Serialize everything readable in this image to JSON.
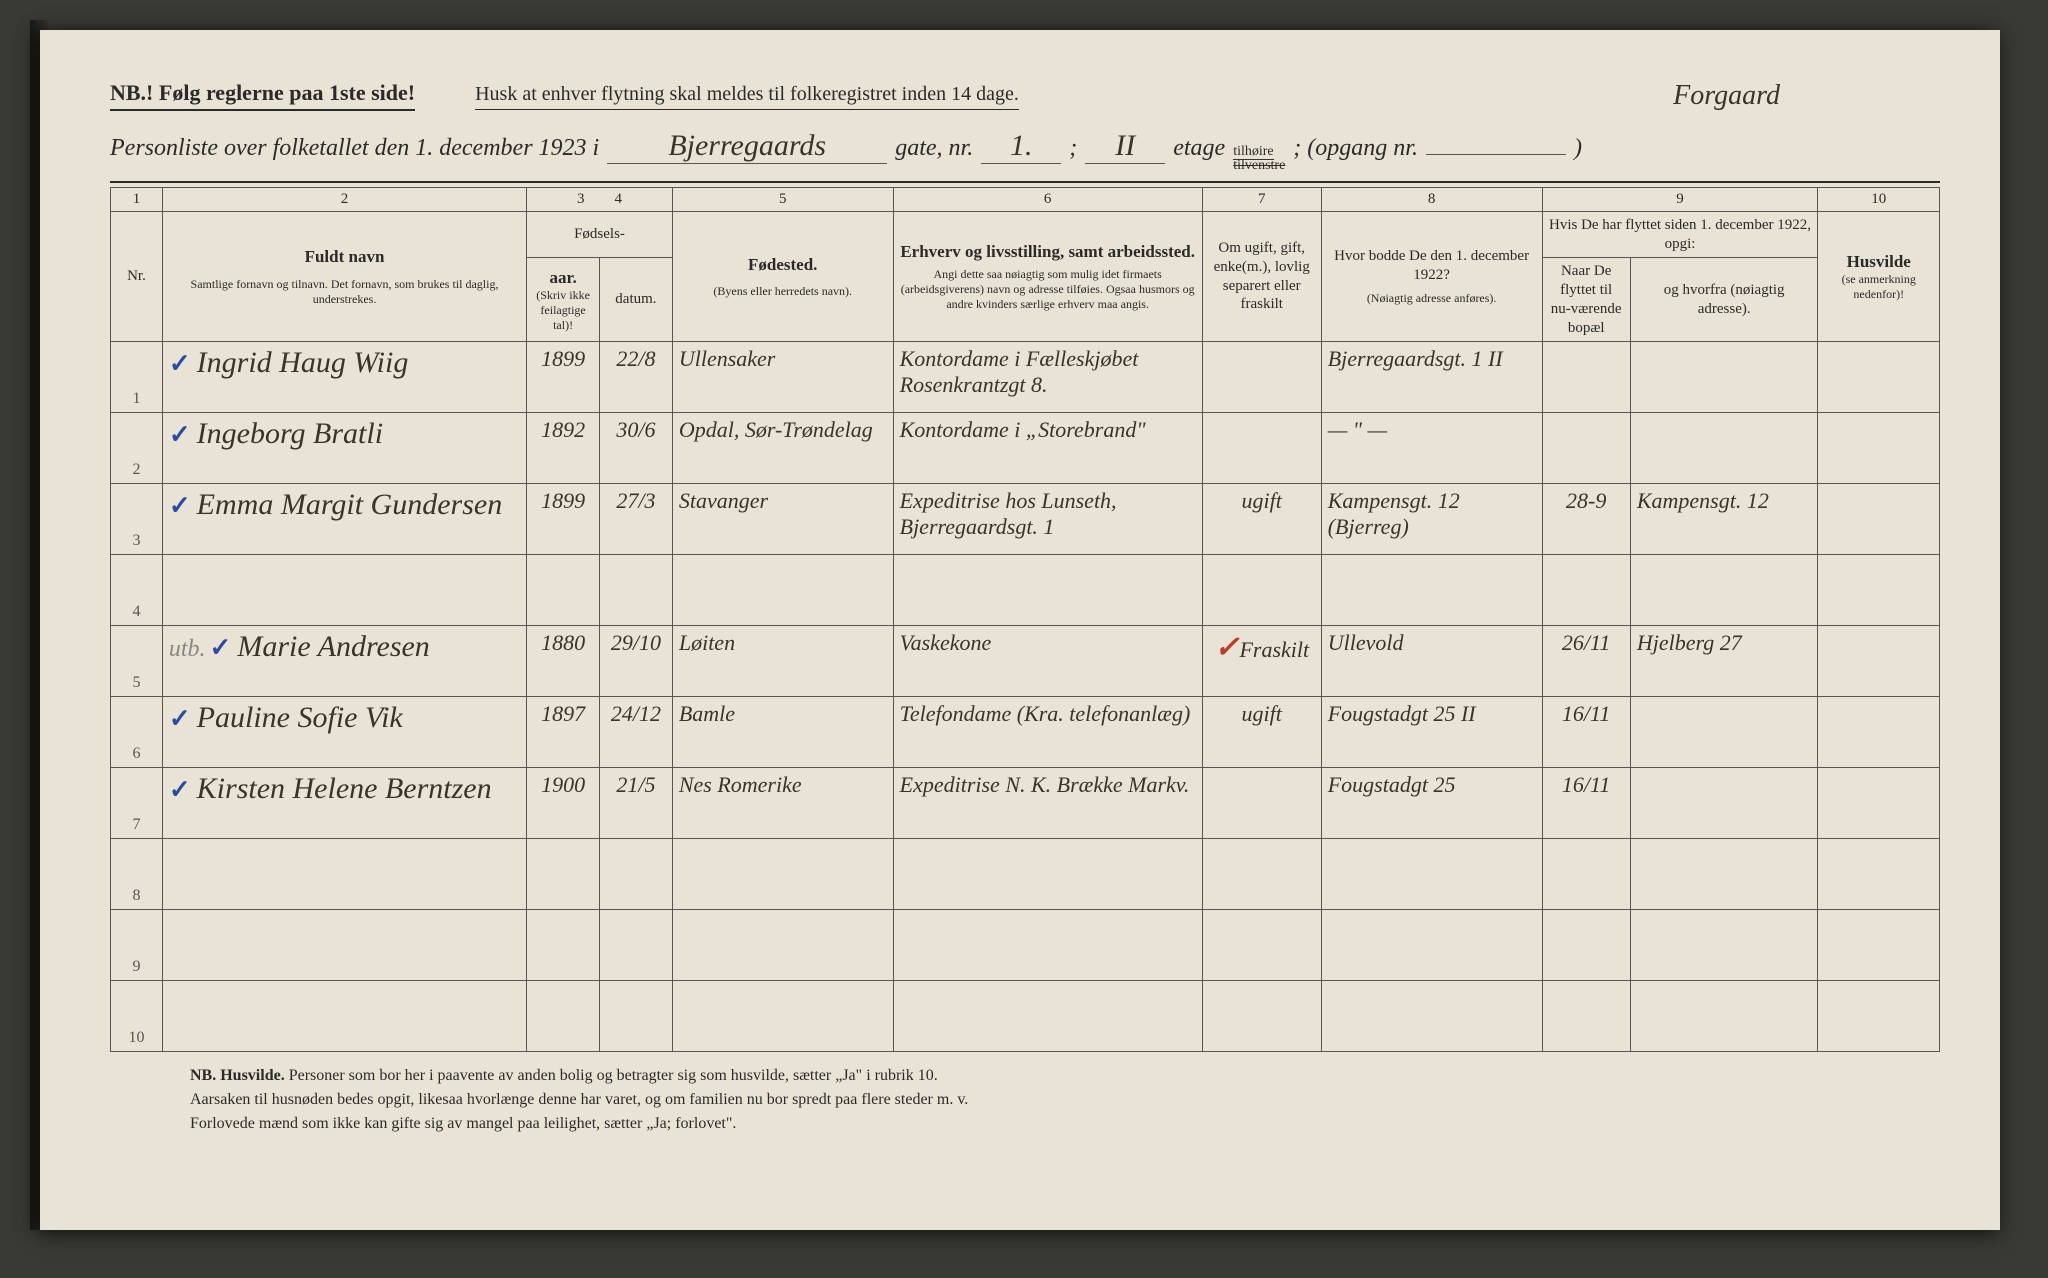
{
  "header": {
    "nb": "NB.! Følg reglerne paa 1ste side!",
    "husk": "Husk at enhver flytning skal meldes til folkeregistret inden 14 dage.",
    "title_prefix": "Personliste over folketallet den 1. december 1923 i",
    "street": "Bjerregaards",
    "gate_label": "gate, nr.",
    "gate_nr": "1.",
    "etage_nr": "II",
    "etage_label": "etage",
    "tilhoire_top": "tilhøire",
    "tilhoire_bot": "tilvenstre",
    "opgang_label": "; (opgang nr.",
    "opgang_close": ")",
    "forgaard": "Forgaard"
  },
  "table": {
    "colnums": [
      "1",
      "2",
      "3",
      "4",
      "5",
      "6",
      "7",
      "8",
      "9",
      "10"
    ],
    "headers": {
      "nr": "Nr.",
      "fuldt_navn": "Fuldt navn",
      "fuldt_navn_sub": "Samtlige fornavn og tilnavn. Det fornavn, som brukes til daglig, understrekes.",
      "fodsels": "Fødsels-",
      "aar": "aar.",
      "datum": "datum.",
      "aar_sub": "(Skriv ikke feilagtige tal)!",
      "fodested": "Fødested.",
      "fodested_sub": "(Byens eller herredets navn).",
      "erhverv": "Erhverv og livsstilling, samt arbeidssted.",
      "erhverv_sub": "Angi dette saa nøiagtig som mulig idet firmaets (arbeidsgiverens) navn og adresse tilføies. Ogsaa husmors og andre kvinders særlige erhverv maa angis.",
      "ugift": "Om ugift, gift, enke(m.), lovlig separert eller fraskilt",
      "bodde": "Hvor bodde De den 1. december 1922?",
      "bodde_sub": "(Nøiagtig adresse anføres).",
      "flyttet": "Hvis De har flyttet siden 1. december 1922, opgi:",
      "naar": "Naar De flyttet til nu-værende bopæl",
      "hvorfra": "og hvorfra (nøiagtig adresse).",
      "husvilde": "Husvilde",
      "husvilde_sub": "(se anmerkning nedenfor)!"
    },
    "rows": [
      {
        "nr": "1",
        "navn": "Ingrid Haug Wiig",
        "aar": "1899",
        "datum": "22/8",
        "fodested": "Ullensaker",
        "erhverv": "Kontordame i Fælleskjøbet Rosenkrantzgt 8.",
        "ugift": "",
        "bodde": "Bjerregaardsgt. 1 II",
        "naar": "",
        "hvorfra": "",
        "husvilde": ""
      },
      {
        "nr": "2",
        "navn": "Ingeborg Bratli",
        "aar": "1892",
        "datum": "30/6",
        "fodested": "Opdal, Sør-Trøndelag",
        "erhverv": "Kontordame i „Storebrand\"",
        "ugift": "",
        "bodde": "— \" —",
        "naar": "",
        "hvorfra": "",
        "husvilde": ""
      },
      {
        "nr": "3",
        "navn": "Emma Margit Gundersen",
        "aar": "1899",
        "datum": "27/3",
        "fodested": "Stavanger",
        "erhverv": "Expeditrise hos Lunseth, Bjerregaardsgt. 1",
        "ugift": "ugift",
        "bodde": "Kampensgt. 12 (Bjerreg)",
        "naar": "28-9",
        "hvorfra": "Kampensgt. 12",
        "husvilde": ""
      },
      {
        "nr": "4",
        "navn": "",
        "aar": "",
        "datum": "",
        "fodested": "",
        "erhverv": "",
        "ugift": "",
        "bodde": "",
        "naar": "",
        "hvorfra": "",
        "husvilde": ""
      },
      {
        "nr": "5",
        "navn": "Marie Andresen",
        "aar": "1880",
        "datum": "29/10",
        "fodested": "Løiten",
        "erhverv": "Vaskekone",
        "ugift": "Fraskilt",
        "bodde": "Ullevold",
        "naar": "26/11",
        "hvorfra": "Hjelberg 27",
        "husvilde": "",
        "pencil": "utb.",
        "red": true
      },
      {
        "nr": "6",
        "navn": "Pauline Sofie Vik",
        "aar": "1897",
        "datum": "24/12",
        "fodested": "Bamle",
        "erhverv": "Telefondame (Kra. telefonanlæg)",
        "ugift": "ugift",
        "bodde": "Fougstadgt 25 II",
        "naar": "16/11",
        "hvorfra": "",
        "husvilde": ""
      },
      {
        "nr": "7",
        "navn": "Kirsten Helene Berntzen",
        "aar": "1900",
        "datum": "21/5",
        "fodested": "Nes Romerike",
        "erhverv": "Expeditrise N. K. Brække Markv.",
        "ugift": "",
        "bodde": "Fougstadgt 25",
        "naar": "16/11",
        "hvorfra": "",
        "husvilde": ""
      },
      {
        "nr": "8",
        "navn": "",
        "aar": "",
        "datum": "",
        "fodested": "",
        "erhverv": "",
        "ugift": "",
        "bodde": "",
        "naar": "",
        "hvorfra": "",
        "husvilde": ""
      },
      {
        "nr": "9",
        "navn": "",
        "aar": "",
        "datum": "",
        "fodested": "",
        "erhverv": "",
        "ugift": "",
        "bodde": "",
        "naar": "",
        "hvorfra": "",
        "husvilde": ""
      },
      {
        "nr": "10",
        "navn": "",
        "aar": "",
        "datum": "",
        "fodested": "",
        "erhverv": "",
        "ugift": "",
        "bodde": "",
        "naar": "",
        "hvorfra": "",
        "husvilde": ""
      }
    ]
  },
  "footnote": {
    "lead": "NB. Husvilde.",
    "l1": "Personer som bor her i paavente av anden bolig og betragter sig som husvilde, sætter „Ja\" i rubrik 10.",
    "l2": "Aarsaken til husnøden bedes opgit, likesaa hvorlænge denne har varet, og om familien nu bor spredt paa flere steder m. v.",
    "l3": "Forlovede mænd som ikke kan gifte sig av mangel paa leilighet, sætter „Ja; forlovet\"."
  },
  "style": {
    "paper_bg": "#e8e3d4",
    "ink": "#2a2a2a",
    "handwriting": "#3a3328",
    "blue": "#2b4aa8",
    "red": "#c0392b",
    "col_widths": [
      "38px",
      "330px",
      "66px",
      "66px",
      "200px",
      "280px",
      "92px",
      "200px",
      "80px",
      "170px",
      "110px"
    ]
  }
}
